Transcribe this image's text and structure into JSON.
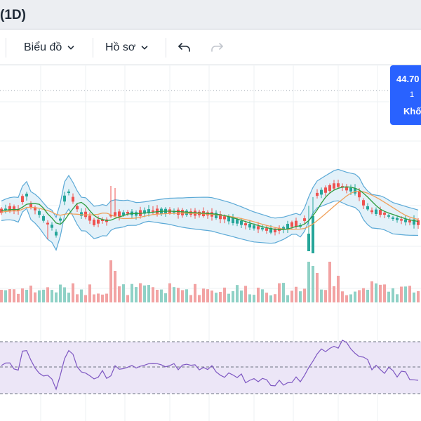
{
  "window": {
    "title_fragment": "(1D)"
  },
  "toolbar": {
    "chart_menu_label": "Biểu đồ",
    "profile_menu_label": "Hồ sơ",
    "undo_icon": "undo-icon",
    "redo_icon": "redo-icon",
    "chevron_icon": "chevron-down-icon"
  },
  "price_badge": {
    "price": "44.70",
    "middle": "1",
    "volume_label": "Khố"
  },
  "colors": {
    "up": "#26a69a",
    "down": "#ef5350",
    "bollinger_fill": "#dcedf7",
    "bollinger_line": "#5ba9d6",
    "ma_short": "#2e9c3f",
    "ma_long": "#f0a05a",
    "rsi_line": "#7e57c2",
    "rsi_band": "#ece6f7",
    "badge": "#2962ff"
  }
}
